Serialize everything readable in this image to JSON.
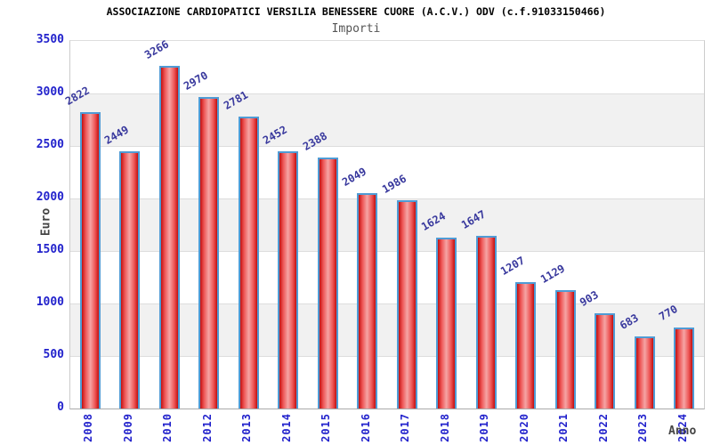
{
  "chart_data": {
    "type": "bar",
    "title": "ASSOCIAZIONE CARDIOPATICI VERSILIA BENESSERE CUORE (A.C.V.) ODV (c.f.91033150466)",
    "subtitle": "Importi",
    "xlabel": "Anno",
    "ylabel": "Euro",
    "categories": [
      "2008",
      "2009",
      "2010",
      "2012",
      "2013",
      "2014",
      "2015",
      "2016",
      "2017",
      "2018",
      "2019",
      "2020",
      "2021",
      "2022",
      "2023",
      "2024"
    ],
    "values": [
      2822,
      2449,
      3266,
      2970,
      2781,
      2452,
      2388,
      2049,
      1986,
      1624,
      1647,
      1207,
      1129,
      903,
      683,
      770
    ],
    "ylim": [
      0,
      3500
    ],
    "ytick_step": 500,
    "legend": null,
    "grid": "horizontal-bands",
    "colors": {
      "bar_border": "#4f9bd5",
      "bar_dark": "#c21010",
      "bar_mid": "#ee5555",
      "bar_light": "#f5a5a5",
      "value_label": "#38389d",
      "tick_label": "#2222cc",
      "band_gray": "#f1f1f1",
      "band_white": "#ffffff",
      "grid_line": "#dddddd",
      "axis_title": "#444444",
      "title_color": "#000000",
      "subtitle_color": "#555555"
    }
  }
}
